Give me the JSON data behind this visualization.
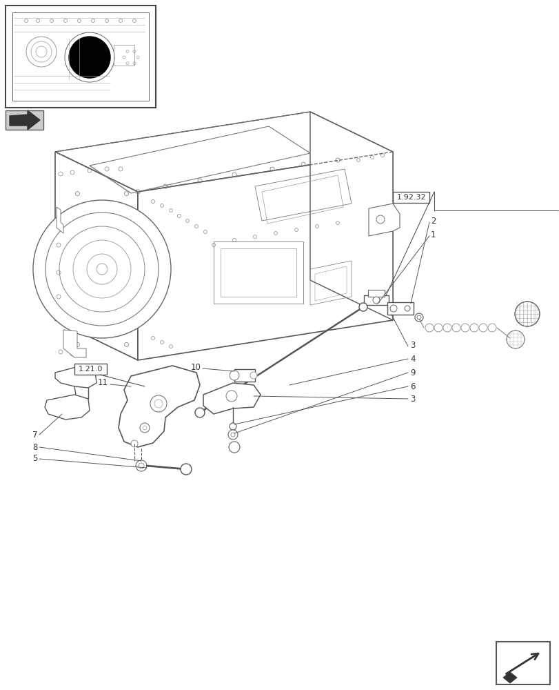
{
  "bg_color": "#ffffff",
  "line_color": "#555555",
  "label_color": "#333333",
  "thin_color": "#777777",
  "ref_box_1": "1.92.32",
  "ref_box_2": "1.21.0",
  "fig_width": 8.12,
  "fig_height": 10.0,
  "dpi": 100
}
